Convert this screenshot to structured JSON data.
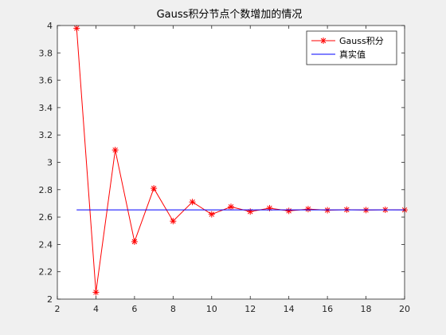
{
  "chart_data": {
    "type": "line",
    "title": "Gauss积分节点个数增加的情况",
    "xlabel": "",
    "ylabel": "",
    "xlim": [
      2,
      20
    ],
    "ylim": [
      2,
      4
    ],
    "xticks": [
      "2",
      "4",
      "6",
      "8",
      "10",
      "12",
      "14",
      "16",
      "18",
      "20"
    ],
    "yticks": [
      "2",
      "2.2",
      "2.4",
      "2.6",
      "2.8",
      "3",
      "3.2",
      "3.4",
      "3.6",
      "3.8",
      "4"
    ],
    "grid": false,
    "legend_position": "top-right",
    "series": [
      {
        "name": "Gauss积分",
        "color": "#ff0000",
        "marker": "asterisk",
        "x": [
          3,
          4,
          5,
          6,
          7,
          8,
          9,
          10,
          11,
          12,
          13,
          14,
          15,
          16,
          17,
          18,
          19,
          20
        ],
        "y": [
          3.98,
          2.05,
          3.09,
          2.42,
          2.81,
          2.57,
          2.71,
          2.62,
          2.675,
          2.64,
          2.665,
          2.645,
          2.658,
          2.65,
          2.654,
          2.651,
          2.653,
          2.652
        ]
      },
      {
        "name": "真实值",
        "color": "#0000ff",
        "marker": "none",
        "x": [
          3,
          20
        ],
        "y": [
          2.652,
          2.652
        ]
      }
    ]
  }
}
